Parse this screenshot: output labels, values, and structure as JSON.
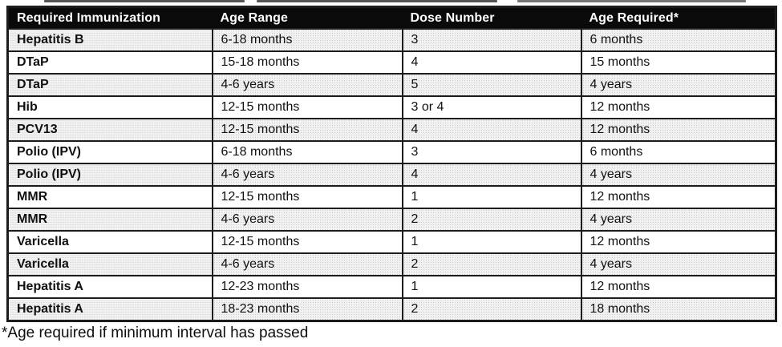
{
  "table": {
    "columns": [
      "Required Immunization",
      "Age Range",
      "Dose Number",
      "Age Required*"
    ],
    "rows": [
      [
        "Hepatitis B",
        "6-18 months",
        "3",
        "6 months"
      ],
      [
        "DTaP",
        "15-18 months",
        "4",
        "15 months"
      ],
      [
        "DTaP",
        "4-6 years",
        "5",
        "4 years"
      ],
      [
        "Hib",
        "12-15 months",
        "3 or 4",
        "12 months"
      ],
      [
        "PCV13",
        "12-15 months",
        "4",
        "12 months"
      ],
      [
        "Polio (IPV)",
        "6-18 months",
        "3",
        "6 months"
      ],
      [
        "Polio (IPV)",
        "4-6 years",
        "4",
        "4 years"
      ],
      [
        "MMR",
        "12-15 months",
        "1",
        "12 months"
      ],
      [
        "MMR",
        "4-6 years",
        "2",
        "4 years"
      ],
      [
        "Varicella",
        "12-15 months",
        "1",
        "12 months"
      ],
      [
        "Varicella",
        "4-6 years",
        "2",
        "4 years"
      ],
      [
        "Hepatitis A",
        "12-23 months",
        "1",
        "12 months"
      ],
      [
        "Hepatitis A",
        "18-23 months",
        "2",
        "18 months"
      ]
    ],
    "footnote": "*Age required if minimum interval has passed"
  },
  "colors": {
    "header_bg": "#0a0a0a",
    "header_text": "#ffffff",
    "row_shaded": "#f1f1f1",
    "row_plain": "#ffffff",
    "border": "#1c1c1c"
  }
}
